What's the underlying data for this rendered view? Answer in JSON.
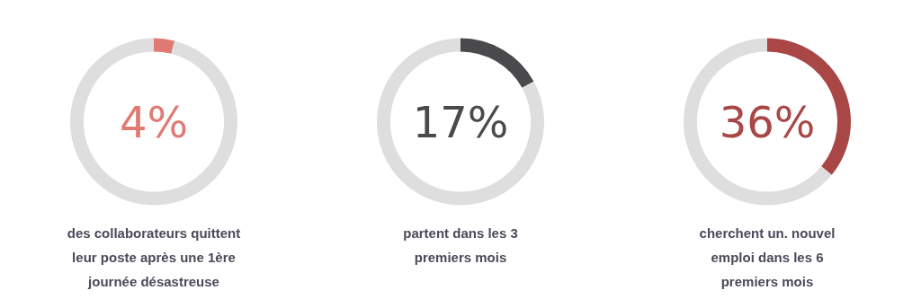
{
  "chart_data": [
    {
      "type": "donut",
      "categories": [
        null,
        null
      ],
      "values": [
        4,
        96
      ],
      "colors": [
        "#e07b74",
        "#dedede"
      ],
      "annotations": [
        "4%",
        "des collaborateurs quittent\nleur poste après une 1ère\njournée désastreuse"
      ]
    },
    {
      "type": "donut",
      "categories": [
        null,
        null
      ],
      "values": [
        17,
        83
      ],
      "colors": [
        "#4a4a4c",
        "#dedede"
      ],
      "annotations": [
        "17%",
        "partent dans les 3\npremiers mois"
      ]
    },
    {
      "type": "donut",
      "categories": [
        null,
        null
      ],
      "values": [
        36,
        64
      ],
      "colors": [
        "#a94646",
        "#dedede"
      ],
      "annotations": [
        "36%",
        "cherchent un. nouvel\nemploi dans les 6\npremiers mois"
      ]
    }
  ]
}
